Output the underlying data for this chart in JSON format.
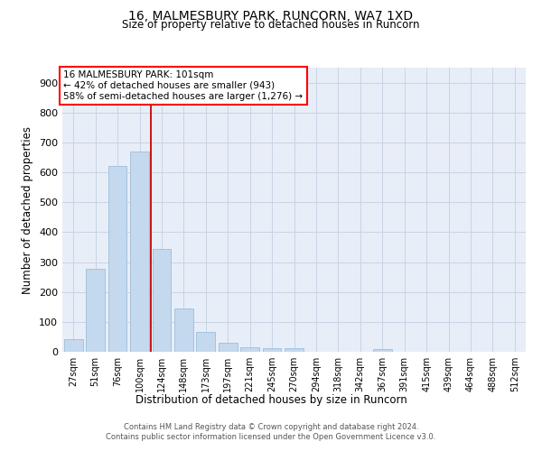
{
  "title1": "16, MALMESBURY PARK, RUNCORN, WA7 1XD",
  "title2": "Size of property relative to detached houses in Runcorn",
  "xlabel": "Distribution of detached houses by size in Runcorn",
  "ylabel": "Number of detached properties",
  "categories": [
    "27sqm",
    "51sqm",
    "76sqm",
    "100sqm",
    "124sqm",
    "148sqm",
    "173sqm",
    "197sqm",
    "221sqm",
    "245sqm",
    "270sqm",
    "294sqm",
    "318sqm",
    "342sqm",
    "367sqm",
    "391sqm",
    "415sqm",
    "439sqm",
    "464sqm",
    "488sqm",
    "512sqm"
  ],
  "values": [
    42,
    278,
    622,
    670,
    343,
    145,
    65,
    30,
    15,
    12,
    11,
    0,
    0,
    0,
    9,
    0,
    0,
    0,
    0,
    0,
    0
  ],
  "bar_color": "#c4d8ee",
  "bar_edge_color": "#90b8d8",
  "property_line_x": 3.5,
  "annotation_text_line1": "16 MALMESBURY PARK: 101sqm",
  "annotation_text_line2": "← 42% of detached houses are smaller (943)",
  "annotation_text_line3": "58% of semi-detached houses are larger (1,276) →",
  "ylim": [
    0,
    950
  ],
  "yticks": [
    0,
    100,
    200,
    300,
    400,
    500,
    600,
    700,
    800,
    900
  ],
  "grid_color": "#c8d4e4",
  "background_color": "#e8eef8",
  "footer_line1": "Contains HM Land Registry data © Crown copyright and database right 2024.",
  "footer_line2": "Contains public sector information licensed under the Open Government Licence v3.0."
}
